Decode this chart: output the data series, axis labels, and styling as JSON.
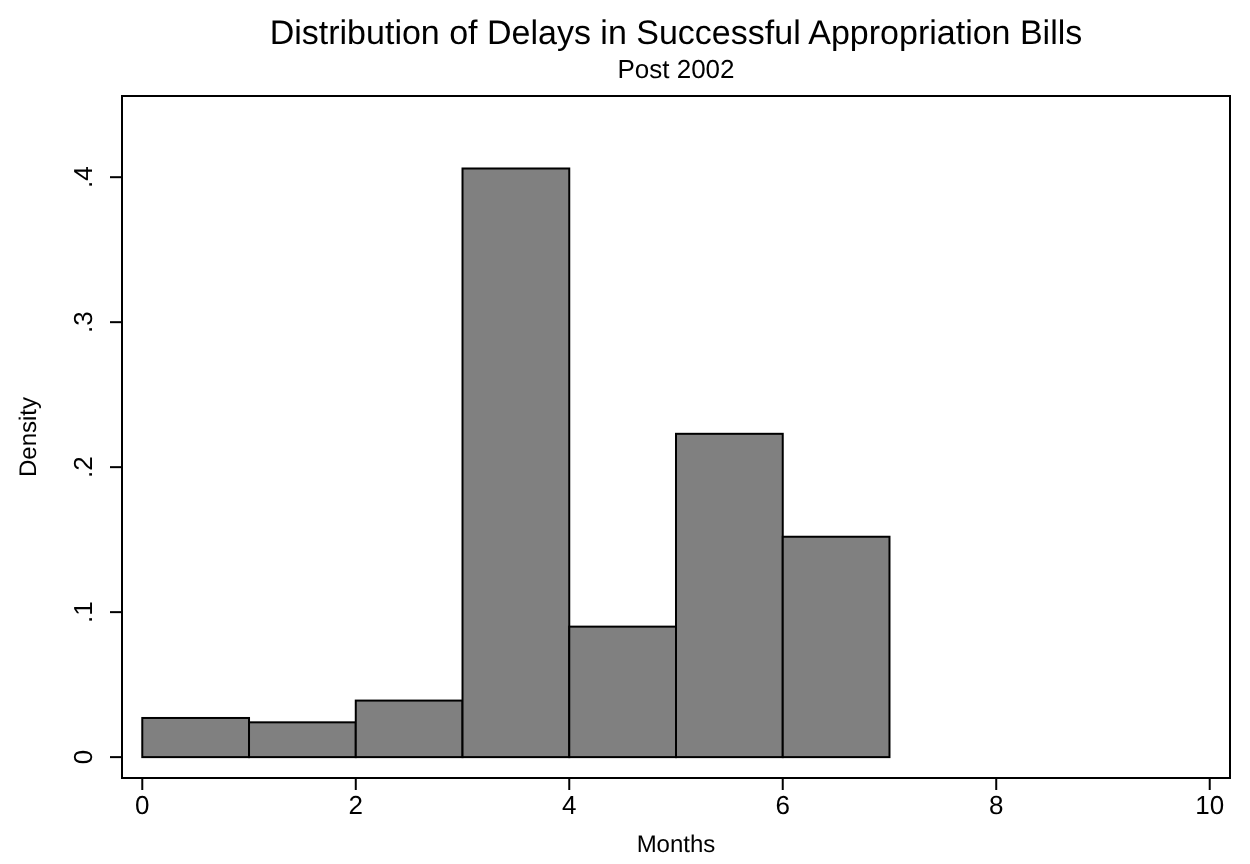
{
  "chart_data": {
    "type": "histogram",
    "title": "Distribution of Delays in Successful Appropriation Bills",
    "subtitle": "Post 2002",
    "xlabel": "Months",
    "ylabel": "Density",
    "bins": [
      0,
      1,
      2,
      3,
      4,
      5,
      6,
      7
    ],
    "values": [
      0.027,
      0.024,
      0.039,
      0.406,
      0.09,
      0.223,
      0.152
    ],
    "color": "#808080",
    "xlim": [
      -0.19,
      10.19
    ],
    "xticks": [
      0,
      2,
      4,
      6,
      8,
      10
    ],
    "ylim": [
      -0.0144,
      0.456
    ],
    "yticks": [
      0,
      {
        "value": 0.1,
        "label": ".1"
      },
      {
        "value": 0.2,
        "label": ".2"
      },
      {
        "value": 0.3,
        "label": ".3"
      },
      {
        "value": 0.4,
        "label": ".4"
      }
    ],
    "grid": false
  }
}
